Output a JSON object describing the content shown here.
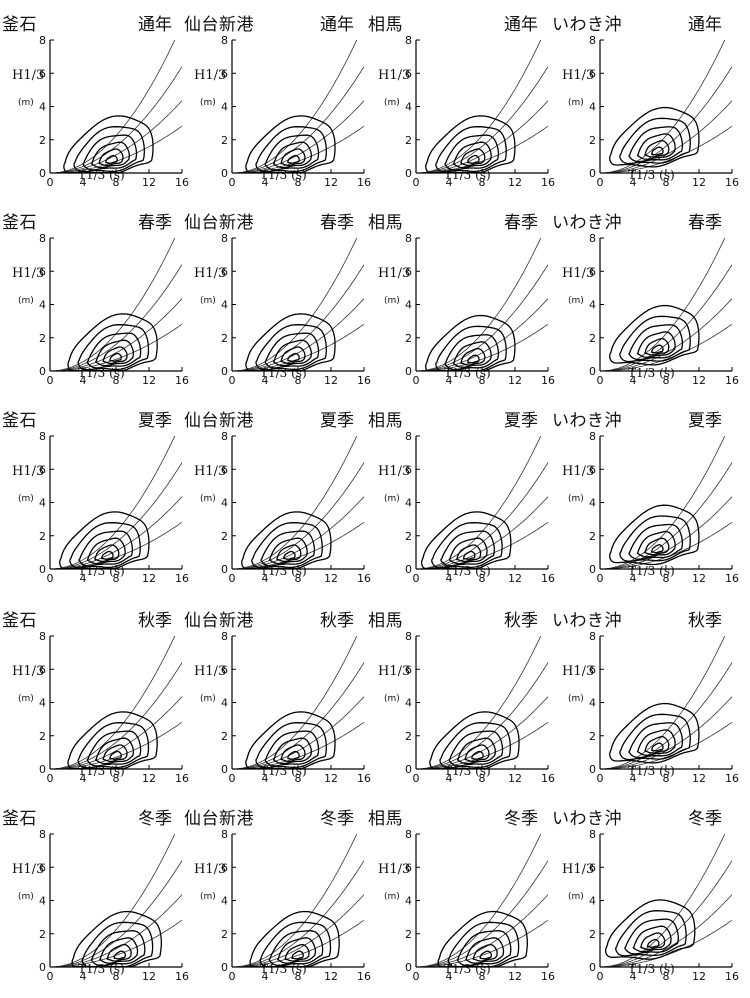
{
  "stations": [
    "釜石",
    "仙台新港",
    "相馬",
    "いわき沖"
  ],
  "seasons": [
    "通年",
    "春季",
    "夏季",
    "秋季",
    "冬季"
  ],
  "axis_labels": {
    "y": "H1/3",
    "y_unit": "(m)",
    "x": "T1/3 (s)"
  },
  "chart_data": {
    "type": "contour",
    "x_ticks": [
      0,
      4,
      8,
      12,
      16
    ],
    "y_ticks": [
      0,
      2,
      4,
      6,
      8
    ],
    "xlim": [
      0,
      16
    ],
    "ylim": [
      0,
      8
    ],
    "steepness_curves": true,
    "panels": [
      {
        "station": "釜石",
        "season": "通年",
        "peak": [
          7.5,
          0.7
        ]
      },
      {
        "station": "仙台新港",
        "season": "通年",
        "peak": [
          7.5,
          0.7
        ]
      },
      {
        "station": "相馬",
        "season": "通年",
        "peak": [
          7.0,
          0.7
        ]
      },
      {
        "station": "いわき沖",
        "season": "通年",
        "peak": [
          7.0,
          1.2
        ]
      },
      {
        "station": "釜石",
        "season": "春季",
        "peak": [
          8.0,
          0.7
        ]
      },
      {
        "station": "仙台新港",
        "season": "春季",
        "peak": [
          7.5,
          0.7
        ]
      },
      {
        "station": "相馬",
        "season": "春季",
        "peak": [
          7.0,
          0.6
        ]
      },
      {
        "station": "いわき沖",
        "season": "春季",
        "peak": [
          7.0,
          1.2
        ]
      },
      {
        "station": "釜石",
        "season": "夏季",
        "peak": [
          7.0,
          0.7
        ]
      },
      {
        "station": "仙台新港",
        "season": "夏季",
        "peak": [
          7.0,
          0.7
        ]
      },
      {
        "station": "相馬",
        "season": "夏季",
        "peak": [
          6.5,
          0.7
        ]
      },
      {
        "station": "いわき沖",
        "season": "夏季",
        "peak": [
          7.0,
          1.1
        ]
      },
      {
        "station": "釜石",
        "season": "秋季",
        "peak": [
          8.0,
          0.7
        ]
      },
      {
        "station": "仙台新港",
        "season": "秋季",
        "peak": [
          7.5,
          0.7
        ]
      },
      {
        "station": "相馬",
        "season": "秋季",
        "peak": [
          7.5,
          0.7
        ]
      },
      {
        "station": "いわき沖",
        "season": "秋季",
        "peak": [
          7.0,
          1.2
        ]
      },
      {
        "station": "釜石",
        "season": "冬季",
        "peak": [
          8.5,
          0.6
        ]
      },
      {
        "station": "仙台新港",
        "season": "冬季",
        "peak": [
          8.0,
          0.6
        ]
      },
      {
        "station": "相馬",
        "season": "冬季",
        "peak": [
          8.5,
          0.6
        ]
      },
      {
        "station": "いわき沖",
        "season": "冬季",
        "peak": [
          6.5,
          1.3
        ]
      }
    ]
  }
}
